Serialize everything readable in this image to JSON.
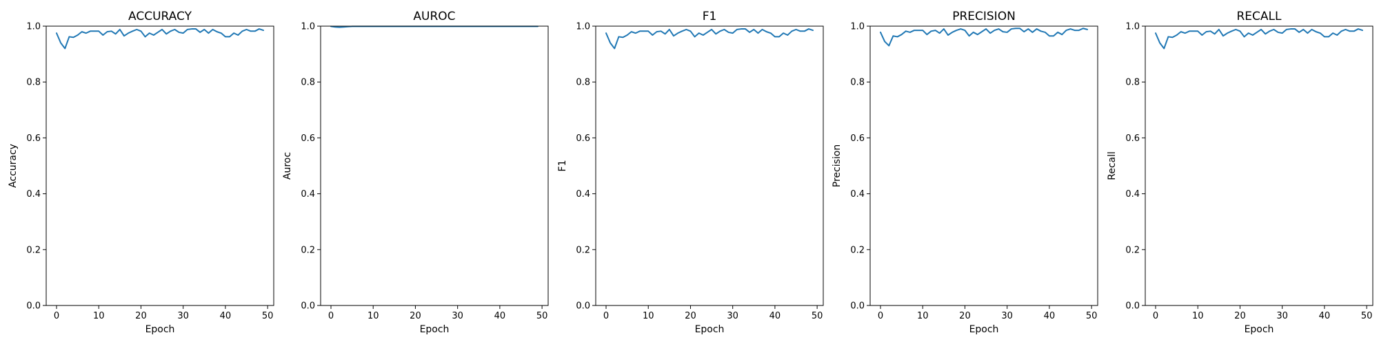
{
  "chart_data": [
    {
      "type": "line",
      "title": "ACCURACY",
      "xlabel": "Epoch",
      "ylabel": "Accuracy",
      "xlim": [
        -2.45,
        51.45
      ],
      "ylim": [
        0.0,
        1.0
      ],
      "xticks": [
        0,
        10,
        20,
        30,
        40,
        50
      ],
      "yticks": [
        0.0,
        0.2,
        0.4,
        0.6,
        0.8,
        1.0
      ],
      "xtick_labels": [
        "0",
        "10",
        "20",
        "30",
        "40",
        "50"
      ],
      "ytick_labels": [
        "0.0",
        "0.2",
        "0.4",
        "0.6",
        "0.8",
        "1.0"
      ],
      "grid": false,
      "color": "#1f77b4",
      "series": [
        {
          "x": [
            0,
            1,
            2,
            3,
            4,
            5,
            6,
            7,
            8,
            9,
            10,
            11,
            12,
            13,
            14,
            15,
            16,
            17,
            18,
            19,
            20,
            21,
            22,
            23,
            24,
            25,
            26,
            27,
            28,
            29,
            30,
            31,
            32,
            33,
            34,
            35,
            36,
            37,
            38,
            39,
            40,
            41,
            42,
            43,
            44,
            45,
            46,
            47,
            48,
            49
          ],
          "values": [
            0.975,
            0.94,
            0.92,
            0.962,
            0.96,
            0.968,
            0.98,
            0.975,
            0.982,
            0.982,
            0.982,
            0.968,
            0.98,
            0.982,
            0.972,
            0.988,
            0.965,
            0.975,
            0.982,
            0.988,
            0.982,
            0.962,
            0.975,
            0.968,
            0.978,
            0.988,
            0.972,
            0.982,
            0.988,
            0.978,
            0.975,
            0.988,
            0.99,
            0.99,
            0.978,
            0.988,
            0.975,
            0.988,
            0.98,
            0.975,
            0.962,
            0.962,
            0.975,
            0.968,
            0.982,
            0.988,
            0.982,
            0.982,
            0.99,
            0.985
          ]
        }
      ]
    },
    {
      "type": "line",
      "title": "AUROC",
      "xlabel": "Epoch",
      "ylabel": "Auroc",
      "xlim": [
        -2.45,
        51.45
      ],
      "ylim": [
        0.0,
        1.0
      ],
      "xticks": [
        0,
        10,
        20,
        30,
        40,
        50
      ],
      "yticks": [
        0.0,
        0.2,
        0.4,
        0.6,
        0.8,
        1.0
      ],
      "xtick_labels": [
        "0",
        "10",
        "20",
        "30",
        "40",
        "50"
      ],
      "ytick_labels": [
        "0.0",
        "0.2",
        "0.4",
        "0.6",
        "0.8",
        "1.0"
      ],
      "grid": false,
      "color": "#1f77b4",
      "series": [
        {
          "x": [
            0,
            1,
            2,
            3,
            4,
            5,
            6,
            7,
            8,
            9,
            10,
            11,
            12,
            13,
            14,
            15,
            16,
            17,
            18,
            19,
            20,
            21,
            22,
            23,
            24,
            25,
            26,
            27,
            28,
            29,
            30,
            31,
            32,
            33,
            34,
            35,
            36,
            37,
            38,
            39,
            40,
            41,
            42,
            43,
            44,
            45,
            46,
            47,
            48,
            49
          ],
          "values": [
            0.999,
            0.997,
            0.996,
            0.997,
            0.998,
            0.999,
            0.999,
            0.999,
            0.999,
            0.999,
            0.999,
            0.999,
            0.999,
            0.999,
            0.999,
            0.999,
            0.999,
            0.999,
            0.999,
            0.999,
            0.999,
            0.999,
            0.999,
            0.999,
            0.999,
            0.999,
            0.999,
            0.999,
            0.999,
            0.999,
            0.999,
            0.999,
            0.999,
            0.999,
            0.999,
            0.999,
            0.999,
            0.999,
            0.999,
            0.999,
            0.999,
            0.999,
            0.999,
            0.999,
            0.999,
            0.999,
            0.999,
            0.999,
            0.999,
            0.999
          ]
        }
      ]
    },
    {
      "type": "line",
      "title": "F1",
      "xlabel": "Epoch",
      "ylabel": "F1",
      "xlim": [
        -2.45,
        51.45
      ],
      "ylim": [
        0.0,
        1.0
      ],
      "xticks": [
        0,
        10,
        20,
        30,
        40,
        50
      ],
      "yticks": [
        0.0,
        0.2,
        0.4,
        0.6,
        0.8,
        1.0
      ],
      "xtick_labels": [
        "0",
        "10",
        "20",
        "30",
        "40",
        "50"
      ],
      "ytick_labels": [
        "0.0",
        "0.2",
        "0.4",
        "0.6",
        "0.8",
        "1.0"
      ],
      "grid": false,
      "color": "#1f77b4",
      "series": [
        {
          "x": [
            0,
            1,
            2,
            3,
            4,
            5,
            6,
            7,
            8,
            9,
            10,
            11,
            12,
            13,
            14,
            15,
            16,
            17,
            18,
            19,
            20,
            21,
            22,
            23,
            24,
            25,
            26,
            27,
            28,
            29,
            30,
            31,
            32,
            33,
            34,
            35,
            36,
            37,
            38,
            39,
            40,
            41,
            42,
            43,
            44,
            45,
            46,
            47,
            48,
            49
          ],
          "values": [
            0.975,
            0.94,
            0.92,
            0.962,
            0.96,
            0.968,
            0.98,
            0.975,
            0.982,
            0.982,
            0.982,
            0.968,
            0.98,
            0.982,
            0.972,
            0.988,
            0.965,
            0.975,
            0.982,
            0.988,
            0.982,
            0.962,
            0.975,
            0.968,
            0.978,
            0.988,
            0.972,
            0.982,
            0.988,
            0.978,
            0.975,
            0.988,
            0.99,
            0.99,
            0.978,
            0.988,
            0.975,
            0.988,
            0.98,
            0.975,
            0.962,
            0.962,
            0.975,
            0.968,
            0.982,
            0.988,
            0.982,
            0.982,
            0.99,
            0.985
          ]
        }
      ]
    },
    {
      "type": "line",
      "title": "PRECISION",
      "xlabel": "Epoch",
      "ylabel": "Precision",
      "xlim": [
        -2.45,
        51.45
      ],
      "ylim": [
        0.0,
        1.0
      ],
      "xticks": [
        0,
        10,
        20,
        30,
        40,
        50
      ],
      "yticks": [
        0.0,
        0.2,
        0.4,
        0.6,
        0.8,
        1.0
      ],
      "xtick_labels": [
        "0",
        "10",
        "20",
        "30",
        "40",
        "50"
      ],
      "ytick_labels": [
        "0.0",
        "0.2",
        "0.4",
        "0.6",
        "0.8",
        "1.0"
      ],
      "grid": false,
      "color": "#1f77b4",
      "series": [
        {
          "x": [
            0,
            1,
            2,
            3,
            4,
            5,
            6,
            7,
            8,
            9,
            10,
            11,
            12,
            13,
            14,
            15,
            16,
            17,
            18,
            19,
            20,
            21,
            22,
            23,
            24,
            25,
            26,
            27,
            28,
            29,
            30,
            31,
            32,
            33,
            34,
            35,
            36,
            37,
            38,
            39,
            40,
            41,
            42,
            43,
            44,
            45,
            46,
            47,
            48,
            49
          ],
          "values": [
            0.978,
            0.945,
            0.93,
            0.965,
            0.962,
            0.97,
            0.982,
            0.978,
            0.985,
            0.985,
            0.985,
            0.97,
            0.982,
            0.985,
            0.975,
            0.99,
            0.968,
            0.978,
            0.985,
            0.99,
            0.985,
            0.965,
            0.978,
            0.97,
            0.98,
            0.99,
            0.975,
            0.985,
            0.99,
            0.98,
            0.978,
            0.99,
            0.992,
            0.992,
            0.98,
            0.99,
            0.978,
            0.99,
            0.982,
            0.978,
            0.965,
            0.965,
            0.978,
            0.97,
            0.985,
            0.99,
            0.985,
            0.985,
            0.992,
            0.988
          ]
        }
      ]
    },
    {
      "type": "line",
      "title": "RECALL",
      "xlabel": "Epoch",
      "ylabel": "Recall",
      "xlim": [
        -2.45,
        51.45
      ],
      "ylim": [
        0.0,
        1.0
      ],
      "xticks": [
        0,
        10,
        20,
        30,
        40,
        50
      ],
      "yticks": [
        0.0,
        0.2,
        0.4,
        0.6,
        0.8,
        1.0
      ],
      "xtick_labels": [
        "0",
        "10",
        "20",
        "30",
        "40",
        "50"
      ],
      "ytick_labels": [
        "0.0",
        "0.2",
        "0.4",
        "0.6",
        "0.8",
        "1.0"
      ],
      "grid": false,
      "color": "#1f77b4",
      "series": [
        {
          "x": [
            0,
            1,
            2,
            3,
            4,
            5,
            6,
            7,
            8,
            9,
            10,
            11,
            12,
            13,
            14,
            15,
            16,
            17,
            18,
            19,
            20,
            21,
            22,
            23,
            24,
            25,
            26,
            27,
            28,
            29,
            30,
            31,
            32,
            33,
            34,
            35,
            36,
            37,
            38,
            39,
            40,
            41,
            42,
            43,
            44,
            45,
            46,
            47,
            48,
            49
          ],
          "values": [
            0.975,
            0.94,
            0.92,
            0.962,
            0.96,
            0.968,
            0.98,
            0.975,
            0.982,
            0.982,
            0.982,
            0.968,
            0.98,
            0.982,
            0.972,
            0.988,
            0.965,
            0.975,
            0.982,
            0.988,
            0.982,
            0.962,
            0.975,
            0.968,
            0.978,
            0.988,
            0.972,
            0.982,
            0.988,
            0.978,
            0.975,
            0.988,
            0.99,
            0.99,
            0.978,
            0.988,
            0.975,
            0.988,
            0.98,
            0.975,
            0.962,
            0.962,
            0.975,
            0.968,
            0.982,
            0.988,
            0.982,
            0.982,
            0.99,
            0.985
          ]
        }
      ]
    }
  ]
}
